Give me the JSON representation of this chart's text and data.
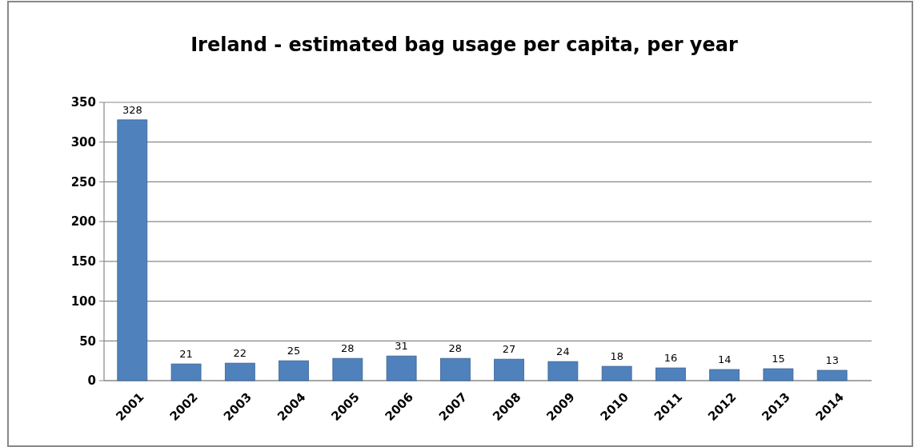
{
  "chart_data": {
    "type": "bar",
    "title": "Ireland - estimated bag usage per capita, per year",
    "categories": [
      "2001",
      "2002",
      "2003",
      "2004",
      "2005",
      "2006",
      "2007",
      "2008",
      "2009",
      "2010",
      "2011",
      "2012",
      "2013",
      "2014"
    ],
    "values": [
      328,
      21,
      22,
      25,
      28,
      31,
      28,
      27,
      24,
      18,
      16,
      14,
      15,
      13
    ],
    "color": "#4f81bd",
    "ylim": [
      0,
      350
    ],
    "yticks": [
      0,
      50,
      100,
      150,
      200,
      250,
      300,
      350
    ],
    "grid": "y",
    "data_labels": true
  }
}
